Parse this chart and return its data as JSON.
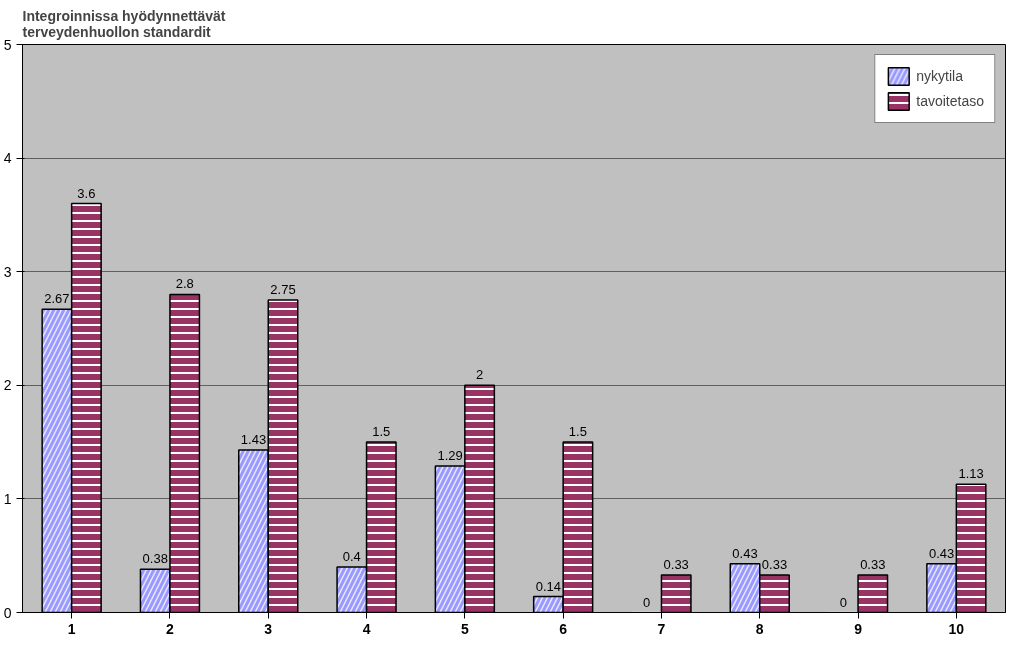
{
  "chart_data": {
    "type": "bar",
    "title": "Integroinnissa hyödynnettävät\nterveydenhuollon standardit",
    "categories": [
      "1",
      "2",
      "3",
      "4",
      "5",
      "6",
      "7",
      "8",
      "9",
      "10"
    ],
    "series": [
      {
        "name": "nykytila",
        "color": "#e8e8ff",
        "values": [
          2.67,
          0.38,
          1.43,
          0.4,
          1.29,
          0.14,
          0,
          0.43,
          0,
          0.43
        ]
      },
      {
        "name": "tavoitetaso",
        "color": "#993366",
        "values": [
          3.6,
          2.8,
          2.75,
          1.5,
          2,
          1.5,
          0.33,
          0.33,
          0.33,
          1.13
        ]
      }
    ],
    "ylim": [
      0,
      5
    ],
    "yticks": [
      0,
      1,
      2,
      3,
      4,
      5
    ],
    "grid": "y",
    "legend": "top right",
    "data_labels": true
  }
}
